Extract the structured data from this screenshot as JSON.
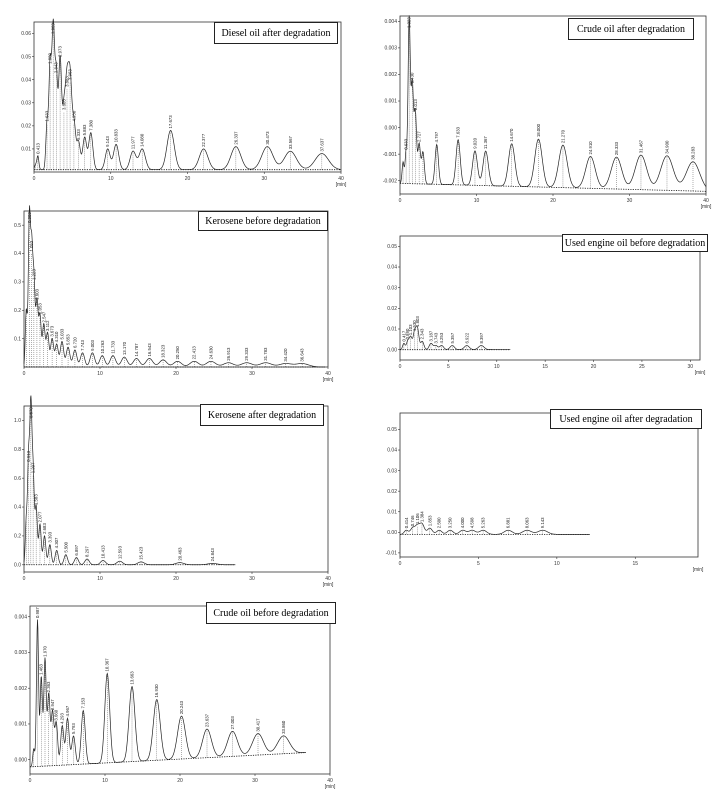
{
  "chart_data": [
    {
      "id": "diesel-after",
      "type": "line",
      "title": "Diesel oil after degradation",
      "xlim": [
        0,
        40
      ],
      "ylim": [
        0,
        0.065
      ],
      "xticks": [
        0,
        10,
        20,
        30,
        40
      ],
      "yticks": [
        0.01,
        0.02,
        0.03,
        0.04,
        0.05,
        0.06
      ],
      "ytick_labels": [
        "0.01",
        "0.02",
        "0.03",
        "0.04",
        "0.05",
        "0.06"
      ],
      "xunit": "[min]",
      "baseline": 0.001,
      "peaks": [
        {
          "t": 0.2,
          "h": 0.002,
          "label": ""
        },
        {
          "t": 0.5,
          "h": 0.006,
          "label": "0.413"
        },
        {
          "t": 1.7,
          "h": 0.02,
          "label": "1.633"
        },
        {
          "t": 2.1,
          "h": 0.045,
          "label": "1.880"
        },
        {
          "t": 2.5,
          "h": 0.06,
          "label": "1.963"
        },
        {
          "t": 2.9,
          "h": 0.041,
          "label": "2.843"
        },
        {
          "t": 3.4,
          "h": 0.048,
          "label": "2.973"
        },
        {
          "t": 3.9,
          "h": 0.025,
          "label": "3.603"
        },
        {
          "t": 4.3,
          "h": 0.035,
          "label": "3.883"
        },
        {
          "t": 4.7,
          "h": 0.038,
          "label": "3.963"
        },
        {
          "t": 5.2,
          "h": 0.02,
          "label": "4.950"
        },
        {
          "t": 5.8,
          "h": 0.012,
          "label": "5.333"
        },
        {
          "t": 6.6,
          "h": 0.014,
          "label": "5.883"
        },
        {
          "t": 7.4,
          "h": 0.016,
          "label": "7.380"
        },
        {
          "t": 9.6,
          "h": 0.009,
          "label": "9.143"
        },
        {
          "t": 10.7,
          "h": 0.011,
          "label": "10.833"
        },
        {
          "t": 12.9,
          "h": 0.008,
          "label": "11.977"
        },
        {
          "t": 14.1,
          "h": 0.009,
          "label": "14.080"
        },
        {
          "t": 17.8,
          "h": 0.017,
          "label": "17.673"
        },
        {
          "t": 22.1,
          "h": 0.009,
          "label": "22.377"
        },
        {
          "t": 26.3,
          "h": 0.01,
          "label": "26.337"
        },
        {
          "t": 30.4,
          "h": 0.01,
          "label": "30.473"
        },
        {
          "t": 33.4,
          "h": 0.008,
          "label": "33.567"
        },
        {
          "t": 37.5,
          "h": 0.007,
          "label": "37.637"
        }
      ]
    },
    {
      "id": "crude-after",
      "type": "line",
      "title": "Crude oil after degradation",
      "xlim": [
        0,
        40
      ],
      "ylim": [
        -0.0025,
        0.0042
      ],
      "xticks": [
        0,
        10,
        20,
        30,
        40
      ],
      "yticks": [
        -0.002,
        -0.001,
        0.0,
        0.001,
        0.002,
        0.003,
        0.004
      ],
      "ytick_labels": [
        "-0.002",
        "-0.001",
        "0.000",
        "0.001",
        "0.002",
        "0.003",
        "0.004"
      ],
      "xunit": "[min]",
      "baseline_start": -0.0021,
      "baseline_end": -0.0024,
      "peaks": [
        {
          "t": 0.4,
          "h": 0.0008,
          "label": ""
        },
        {
          "t": 0.8,
          "h": 0.0012,
          "label": "0.633"
        },
        {
          "t": 1.2,
          "h": 0.0062,
          "label": "1.323"
        },
        {
          "t": 1.6,
          "h": 0.0037,
          "label": "1.430"
        },
        {
          "t": 2.0,
          "h": 0.0027,
          "label": "2.013"
        },
        {
          "t": 2.5,
          "h": 0.0015,
          "label": "2.727"
        },
        {
          "t": 3.0,
          "h": 0.0012,
          "label": ""
        },
        {
          "t": 4.8,
          "h": 0.0015,
          "label": "4.797"
        },
        {
          "t": 7.6,
          "h": 0.0017,
          "label": "7.633"
        },
        {
          "t": 9.8,
          "h": 0.0013,
          "label": "9.020"
        },
        {
          "t": 11.2,
          "h": 0.0013,
          "label": "11.367"
        },
        {
          "t": 14.6,
          "h": 0.0016,
          "label": "14.670"
        },
        {
          "t": 18.1,
          "h": 0.0018,
          "label": "18.000"
        },
        {
          "t": 21.3,
          "h": 0.0016,
          "label": "21.270"
        },
        {
          "t": 24.9,
          "h": 0.0012,
          "label": "24.910"
        },
        {
          "t": 28.3,
          "h": 0.0012,
          "label": "28.333"
        },
        {
          "t": 31.5,
          "h": 0.0013,
          "label": "31.467"
        },
        {
          "t": 34.9,
          "h": 0.0013,
          "label": "34.900"
        },
        {
          "t": 38.3,
          "h": 0.0011,
          "label": "38.283"
        }
      ]
    },
    {
      "id": "kerosene-before",
      "type": "line",
      "title": "Kerosene before degradation",
      "xlim": [
        0,
        40
      ],
      "ylim": [
        0,
        0.55
      ],
      "xticks": [
        0,
        10,
        20,
        30,
        40
      ],
      "yticks": [
        0.1,
        0.2,
        0.3,
        0.4,
        0.5
      ],
      "ytick_labels": [
        "0.1",
        "0.2",
        "0.3",
        "0.4",
        "0.5"
      ],
      "xunit": "[min]",
      "baseline": 0.0,
      "peaks": [
        {
          "t": 0.3,
          "h": 0.2,
          "label": ""
        },
        {
          "t": 0.7,
          "h": 0.52,
          "label": "0.803"
        },
        {
          "t": 1.0,
          "h": 0.4,
          "label": "1.053"
        },
        {
          "t": 1.3,
          "h": 0.3,
          "label": "1.223"
        },
        {
          "t": 1.7,
          "h": 0.23,
          "label": "1.603"
        },
        {
          "t": 2.1,
          "h": 0.18,
          "label": "2.053"
        },
        {
          "t": 2.6,
          "h": 0.15,
          "label": "2.547"
        },
        {
          "t": 3.1,
          "h": 0.12,
          "label": "3.112"
        },
        {
          "t": 3.7,
          "h": 0.1,
          "label": "3.673"
        },
        {
          "t": 4.3,
          "h": 0.08,
          "label": "4.310"
        },
        {
          "t": 5.0,
          "h": 0.09,
          "label": "5.033"
        },
        {
          "t": 5.8,
          "h": 0.07,
          "label": "5.853"
        },
        {
          "t": 6.7,
          "h": 0.06,
          "label": "6.720"
        },
        {
          "t": 7.7,
          "h": 0.05,
          "label": "7.743"
        },
        {
          "t": 9.0,
          "h": 0.05,
          "label": "9.003"
        },
        {
          "t": 10.3,
          "h": 0.04,
          "label": "10.263"
        },
        {
          "t": 11.7,
          "h": 0.04,
          "label": "11.733"
        },
        {
          "t": 13.2,
          "h": 0.035,
          "label": "13.170"
        },
        {
          "t": 14.8,
          "h": 0.03,
          "label": "14.787"
        },
        {
          "t": 16.5,
          "h": 0.03,
          "label": "16.543"
        },
        {
          "t": 18.3,
          "h": 0.025,
          "label": "18.323"
        },
        {
          "t": 20.2,
          "h": 0.02,
          "label": "20.250"
        },
        {
          "t": 22.4,
          "h": 0.02,
          "label": "22.413"
        },
        {
          "t": 24.6,
          "h": 0.02,
          "label": "24.630"
        },
        {
          "t": 26.9,
          "h": 0.015,
          "label": "26.913"
        },
        {
          "t": 29.3,
          "h": 0.015,
          "label": "29.333"
        },
        {
          "t": 31.8,
          "h": 0.015,
          "label": "31.783"
        },
        {
          "t": 34.4,
          "h": 0.012,
          "label": "34.420"
        },
        {
          "t": 36.6,
          "h": 0.012,
          "label": "36.643"
        }
      ]
    },
    {
      "id": "used-engine-before",
      "type": "line",
      "title": "Used engine oil before degradation",
      "xlim": [
        0,
        31
      ],
      "ylim": [
        -0.005,
        0.055
      ],
      "xticks": [
        0,
        5,
        10,
        15,
        20,
        25,
        30
      ],
      "yticks": [
        0.0,
        0.01,
        0.02,
        0.03,
        0.04,
        0.05
      ],
      "ytick_labels": [
        "0.00",
        "0.01",
        "0.02",
        "0.03",
        "0.04",
        "0.05"
      ],
      "xunit": "[min]",
      "baseline": 0.0,
      "peaks": [
        {
          "t": 0.4,
          "h": 0.003,
          "label": "0.417"
        },
        {
          "t": 0.8,
          "h": 0.004,
          "label": "0.890"
        },
        {
          "t": 1.1,
          "h": 0.006,
          "label": "1.103"
        },
        {
          "t": 1.5,
          "h": 0.008,
          "label": "1.530"
        },
        {
          "t": 1.8,
          "h": 0.01,
          "label": "1.803"
        },
        {
          "t": 2.3,
          "h": 0.004,
          "label": "2.343"
        },
        {
          "t": 3.2,
          "h": 0.003,
          "label": "3.187"
        },
        {
          "t": 3.7,
          "h": 0.002,
          "label": "3.743"
        },
        {
          "t": 4.3,
          "h": 0.002,
          "label": "4.253"
        },
        {
          "t": 5.4,
          "h": 0.002,
          "label": "5.357"
        },
        {
          "t": 6.9,
          "h": 0.002,
          "label": "6.922"
        },
        {
          "t": 8.4,
          "h": 0.002,
          "label": "8.397"
        }
      ]
    },
    {
      "id": "kerosene-after",
      "type": "line",
      "title": "Kerosene after degradation",
      "xlim": [
        0,
        40
      ],
      "ylim": [
        -0.05,
        1.1
      ],
      "xticks": [
        0,
        10,
        20,
        30,
        40
      ],
      "yticks": [
        0.0,
        0.2,
        0.4,
        0.6,
        0.8,
        1.0
      ],
      "ytick_labels": [
        "0.0",
        "0.2",
        "0.4",
        "0.6",
        "0.8",
        "1.0"
      ],
      "xunit": "[min]",
      "baseline": 0.0,
      "peaks": [
        {
          "t": 0.3,
          "h": 0.3,
          "label": ""
        },
        {
          "t": 0.6,
          "h": 0.7,
          "label": "0.613"
        },
        {
          "t": 0.9,
          "h": 1.05,
          "label": "0.870"
        },
        {
          "t": 1.2,
          "h": 0.62,
          "label": "1.207"
        },
        {
          "t": 1.6,
          "h": 0.4,
          "label": "1.583"
        },
        {
          "t": 2.1,
          "h": 0.28,
          "label": "2.077"
        },
        {
          "t": 2.7,
          "h": 0.2,
          "label": "2.683"
        },
        {
          "t": 3.4,
          "h": 0.14,
          "label": "3.393"
        },
        {
          "t": 4.3,
          "h": 0.1,
          "label": "4.307"
        },
        {
          "t": 5.5,
          "h": 0.07,
          "label": "5.500"
        },
        {
          "t": 6.9,
          "h": 0.05,
          "label": "6.897"
        },
        {
          "t": 8.3,
          "h": 0.04,
          "label": "8.297"
        },
        {
          "t": 10.4,
          "h": 0.03,
          "label": "10.413"
        },
        {
          "t": 12.6,
          "h": 0.025,
          "label": "12.593"
        },
        {
          "t": 15.4,
          "h": 0.02,
          "label": "15.423"
        },
        {
          "t": 20.5,
          "h": 0.015,
          "label": "20.463"
        },
        {
          "t": 24.8,
          "h": 0.01,
          "label": "24.843"
        }
      ]
    },
    {
      "id": "used-engine-after",
      "type": "line",
      "title": "Used engine oil after degradation",
      "xlim": [
        0,
        19
      ],
      "ylim": [
        -0.012,
        0.058
      ],
      "xticks": [
        0,
        5,
        10,
        15
      ],
      "yticks": [
        -0.01,
        0.0,
        0.01,
        0.02,
        0.03,
        0.04,
        0.05
      ],
      "ytick_labels": [
        "-0.01",
        "0.00",
        "0.01",
        "0.02",
        "0.03",
        "0.04",
        "0.05"
      ],
      "xunit": "[min]",
      "baseline": -0.001,
      "peaks": [
        {
          "t": 0.4,
          "h": 0.002,
          "label": "0.414"
        },
        {
          "t": 0.8,
          "h": 0.003,
          "label": "0.746"
        },
        {
          "t": 1.1,
          "h": 0.004,
          "label": "1.106"
        },
        {
          "t": 1.4,
          "h": 0.005,
          "label": "1.384"
        },
        {
          "t": 1.9,
          "h": 0.003,
          "label": "1.853"
        },
        {
          "t": 2.5,
          "h": 0.002,
          "label": "2.500"
        },
        {
          "t": 3.2,
          "h": 0.002,
          "label": "3.250"
        },
        {
          "t": 4.0,
          "h": 0.002,
          "label": "4.000"
        },
        {
          "t": 4.6,
          "h": 0.002,
          "label": "4.598"
        },
        {
          "t": 5.3,
          "h": 0.002,
          "label": "5.263"
        },
        {
          "t": 6.9,
          "h": 0.002,
          "label": "6.881"
        },
        {
          "t": 8.1,
          "h": 0.002,
          "label": "8.063"
        },
        {
          "t": 9.1,
          "h": 0.002,
          "label": "9.143"
        }
      ]
    },
    {
      "id": "crude-before",
      "type": "line",
      "title": "Crude oil before degradation",
      "xlim": [
        0,
        40
      ],
      "ylim": [
        -0.0004,
        0.0043
      ],
      "xticks": [
        0,
        10,
        20,
        30,
        40
      ],
      "yticks": [
        0.0,
        0.001,
        0.002,
        0.003,
        0.004
      ],
      "ytick_labels": [
        "0.000",
        "0.001",
        "0.002",
        "0.003",
        "0.004"
      ],
      "xunit": "[min]",
      "baseline_start": -0.0002,
      "baseline_end": 0.0002,
      "peaks": [
        {
          "t": 0.5,
          "h": 0.0005,
          "label": ""
        },
        {
          "t": 1.0,
          "h": 0.0041,
          "label": "0.987"
        },
        {
          "t": 1.5,
          "h": 0.0025,
          "label": "1.463"
        },
        {
          "t": 2.0,
          "h": 0.003,
          "label": "1.970"
        },
        {
          "t": 2.5,
          "h": 0.002,
          "label": "2.363"
        },
        {
          "t": 3.0,
          "h": 0.0015,
          "label": "2.947"
        },
        {
          "t": 3.5,
          "h": 0.0012,
          "label": "3.660"
        },
        {
          "t": 4.3,
          "h": 0.0011,
          "label": "4.293"
        },
        {
          "t": 5.0,
          "h": 0.0013,
          "label": "4.967"
        },
        {
          "t": 5.8,
          "h": 0.0008,
          "label": "5.793"
        },
        {
          "t": 7.1,
          "h": 0.0015,
          "label": "7.153"
        },
        {
          "t": 10.3,
          "h": 0.0025,
          "label": "10.367"
        },
        {
          "t": 13.6,
          "h": 0.0021,
          "label": "13.663"
        },
        {
          "t": 16.9,
          "h": 0.0017,
          "label": "16.930"
        },
        {
          "t": 20.2,
          "h": 0.0012,
          "label": "20.243"
        },
        {
          "t": 23.6,
          "h": 0.0008,
          "label": "23.637"
        },
        {
          "t": 27.0,
          "h": 0.0007,
          "label": "27.003"
        },
        {
          "t": 30.4,
          "h": 0.0006,
          "label": "30.417"
        },
        {
          "t": 33.8,
          "h": 0.0005,
          "label": "33.860"
        }
      ]
    }
  ]
}
